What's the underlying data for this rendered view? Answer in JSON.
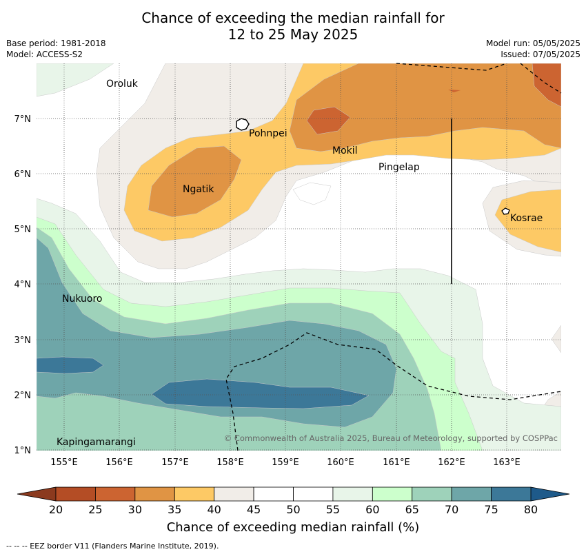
{
  "title": {
    "line1": "Chance of exceeding the median rainfall for",
    "line2": "12 to 25 May 2025"
  },
  "meta": {
    "base_period": "Base period: 1981-2018",
    "model": "Model: ACCESS-S2",
    "model_run": "Model run: 05/05/2025",
    "issued": "Issued: 07/05/2025"
  },
  "map": {
    "lon_range": [
      154.5,
      164.0
    ],
    "lat_range": [
      1.0,
      8.0
    ],
    "x_ticks": [
      "155°E",
      "156°E",
      "157°E",
      "158°E",
      "159°E",
      "160°E",
      "161°E",
      "162°E",
      "163°E"
    ],
    "y_ticks": [
      "1°N",
      "2°N",
      "3°N",
      "4°N",
      "5°N",
      "6°N",
      "7°N"
    ],
    "places": [
      {
        "name": "Oroluk",
        "lon": 155.7,
        "lat": 7.6
      },
      {
        "name": "Pohnpei",
        "lon": 158.2,
        "lat": 6.8
      },
      {
        "name": "Mokil",
        "lon": 160.1,
        "lat": 6.4
      },
      {
        "name": "Pingelap",
        "lon": 160.8,
        "lat": 6.1
      },
      {
        "name": "Ngatik",
        "lon": 157.1,
        "lat": 5.7
      },
      {
        "name": "Kosrae",
        "lon": 163.0,
        "lat": 5.2
      },
      {
        "name": "Nukuoro",
        "lon": 154.9,
        "lat": 3.7
      },
      {
        "name": "Kapingamarangi",
        "lon": 154.8,
        "lat": 1.1
      }
    ],
    "copyright": "© Commonwealth of Australia 2025, Bureau of Meteorology, supported by COSPPac"
  },
  "colorbar": {
    "ticks": [
      "20",
      "25",
      "30",
      "35",
      "40",
      "45",
      "50",
      "55",
      "60",
      "65",
      "70",
      "75",
      "80"
    ],
    "colors": [
      "#b44d25",
      "#cc6431",
      "#e09444",
      "#fdc965",
      "#f1ede8",
      "#ffffff",
      "#ffffff",
      "#e8f5e9",
      "#ccffcc",
      "#9ed2ba",
      "#6ea6a8",
      "#3c7898"
    ],
    "under_color": "#8b3a1e",
    "over_color": "#1e5a8a",
    "label": "Chance of exceeding median rainfall (%)"
  },
  "footer": "--  --  -- EEZ border V11 (Flanders Marine Institute, 2019)."
}
